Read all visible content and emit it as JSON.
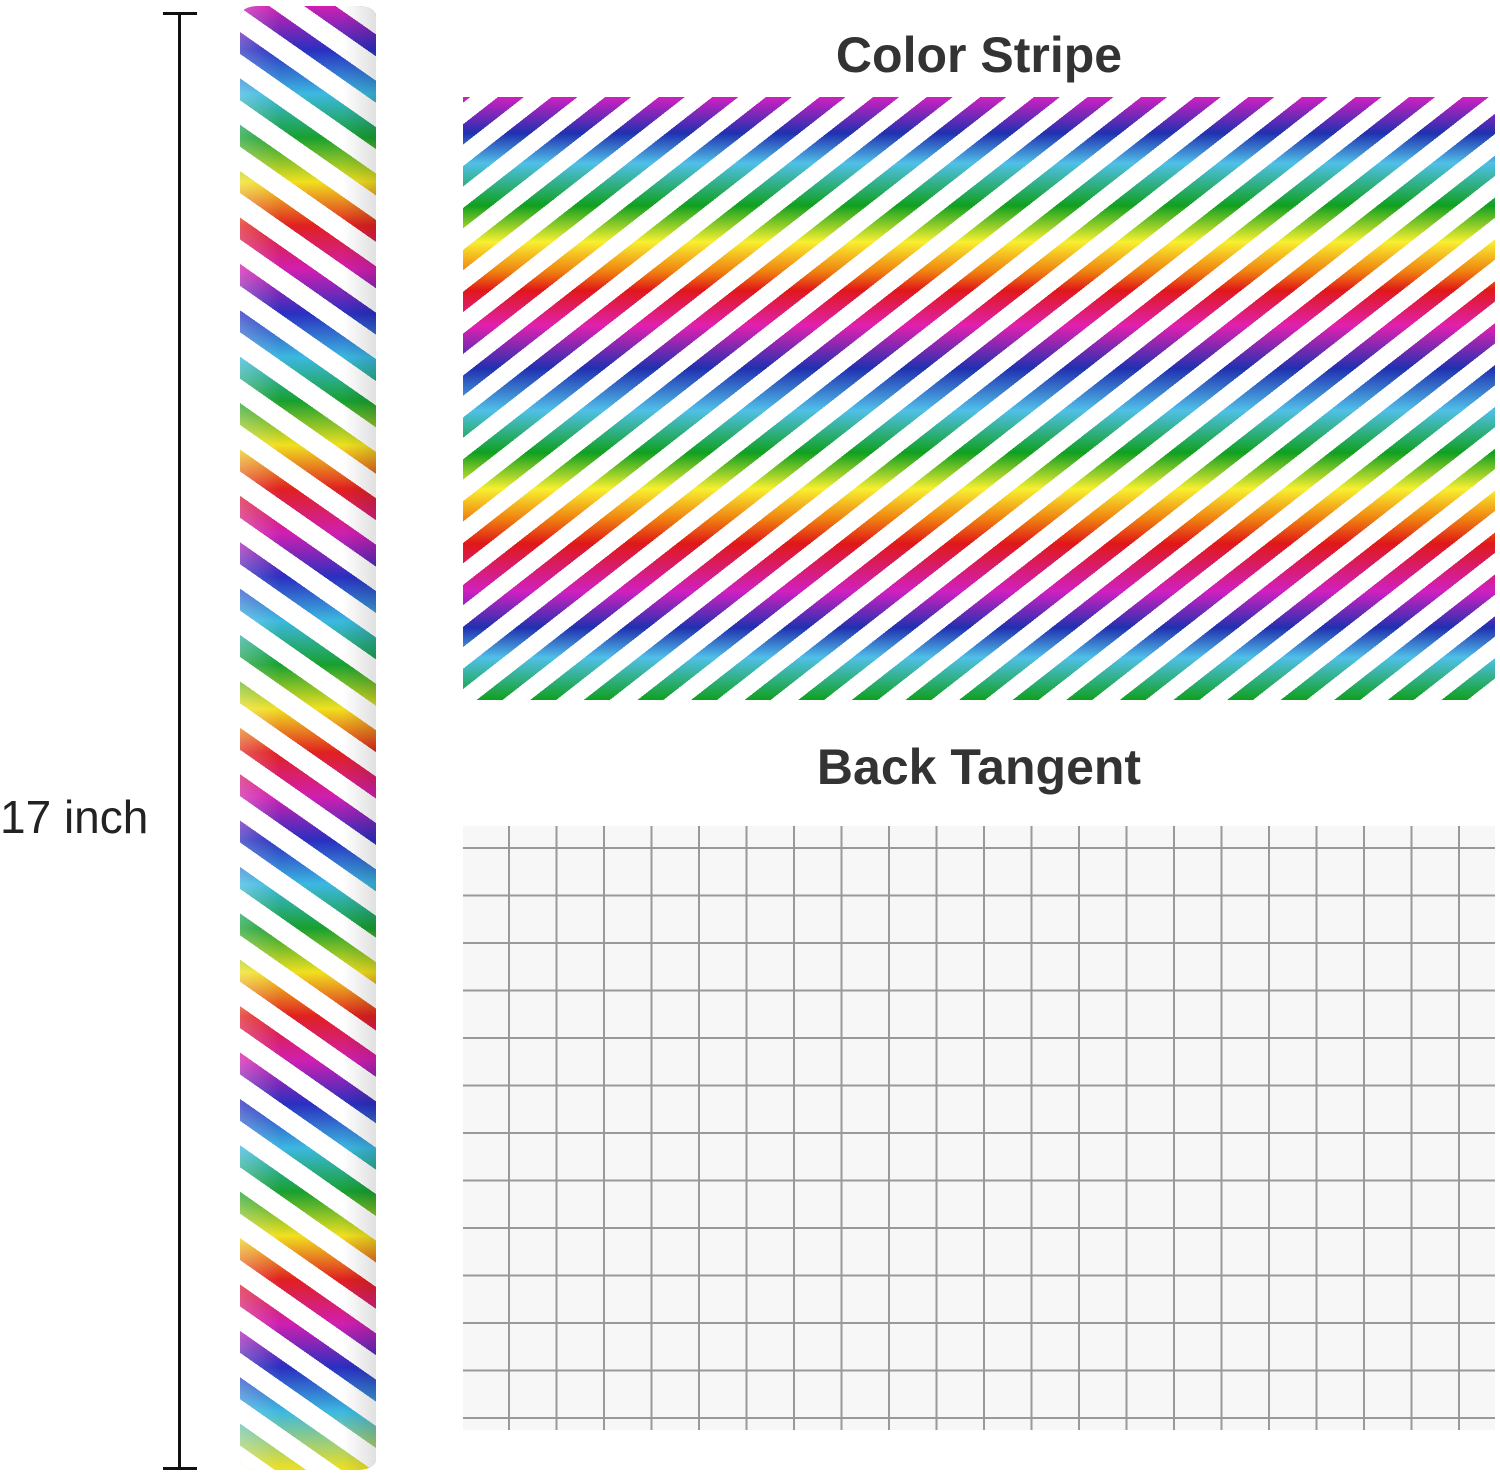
{
  "dimension": {
    "label": "17 inch"
  },
  "panels": {
    "stripe_title": "Color Stripe",
    "grid_title": "Back Tangent"
  },
  "colors": {
    "stripes": [
      "#d020c0",
      "#2030b0",
      "#50c0e8",
      "#10a020",
      "#f8f030",
      "#f08010",
      "#e01818"
    ],
    "grid_line": "#999999",
    "grid_background": "#f7f7f7"
  }
}
